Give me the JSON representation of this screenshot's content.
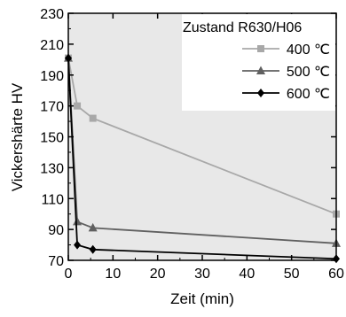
{
  "chart_data": {
    "type": "line",
    "title": "",
    "xlabel": "Zeit (min)",
    "ylabel": "Vickershärte HV",
    "xlim": [
      0,
      60
    ],
    "ylim": [
      70,
      230
    ],
    "x_ticks": [
      0,
      10,
      20,
      30,
      40,
      50,
      60
    ],
    "y_ticks": [
      70,
      90,
      110,
      130,
      150,
      170,
      190,
      210,
      230
    ],
    "grid": false,
    "plot_background": "#e8e8e8",
    "legend": {
      "title": "Zustand R630/H06",
      "placement": "top-right"
    },
    "series": [
      {
        "name": "400 ℃",
        "color": "#a8a8a8",
        "marker": "square",
        "x": [
          0,
          2,
          5.5,
          60
        ],
        "y": [
          201,
          170,
          162,
          100
        ]
      },
      {
        "name": "500 ℃",
        "color": "#606060",
        "marker": "triangle",
        "x": [
          0,
          2,
          5.5,
          60
        ],
        "y": [
          201,
          95,
          91,
          81
        ]
      },
      {
        "name": "600 ℃",
        "color": "#000000",
        "marker": "diamond",
        "x": [
          0,
          2,
          5.5,
          60
        ],
        "y": [
          201,
          80,
          77,
          71
        ]
      }
    ]
  }
}
